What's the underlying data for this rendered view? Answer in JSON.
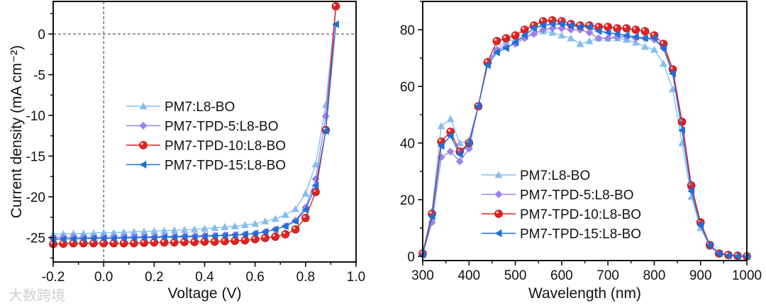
{
  "watermark": "大数跨境",
  "chart_data": [
    {
      "type": "line",
      "xlabel": "Voltage (V)",
      "ylabel": "Current density (mA cm⁻²)",
      "xlim": [
        -0.2,
        1.0
      ],
      "ylim": [
        -28,
        4
      ],
      "xticks": [
        -0.2,
        0.0,
        0.2,
        0.4,
        0.6,
        0.8,
        1.0
      ],
      "xtick_labels": [
        "-0.2",
        "0.0",
        "0.2",
        "0.4",
        "0.6",
        "0.8",
        "1.0"
      ],
      "yticks": [
        -25,
        -20,
        -15,
        -10,
        -5,
        0
      ],
      "ytick_labels": [
        "-25",
        "-20",
        "-15",
        "-10",
        "-5",
        "0"
      ],
      "reference_lines": [
        "x=0 dashed",
        "y=0 dashed"
      ],
      "legend_position": "center-left",
      "x": [
        -0.2,
        -0.16,
        -0.12,
        -0.08,
        -0.04,
        0.0,
        0.04,
        0.08,
        0.12,
        0.16,
        0.2,
        0.24,
        0.28,
        0.32,
        0.36,
        0.4,
        0.44,
        0.48,
        0.52,
        0.56,
        0.6,
        0.64,
        0.68,
        0.72,
        0.76,
        0.8,
        0.84,
        0.88,
        0.92
      ],
      "series": [
        {
          "name": "PM7:L8-BO",
          "color": "#86bdee",
          "marker": "triangle-up",
          "values": [
            -24.6,
            -24.55,
            -24.5,
            -24.5,
            -24.45,
            -24.4,
            -24.4,
            -24.35,
            -24.3,
            -24.25,
            -24.2,
            -24.15,
            -24.1,
            -24.05,
            -24.0,
            -23.9,
            -23.8,
            -23.7,
            -23.6,
            -23.45,
            -23.3,
            -23.0,
            -22.7,
            -22.2,
            -21.5,
            -19.6,
            -16.0,
            -8.7,
            3.5
          ]
        },
        {
          "name": "PM7-TPD-5:L8-BO",
          "color": "#9d82ea",
          "marker": "diamond",
          "values": [
            -25.0,
            -25.0,
            -25.0,
            -25.0,
            -25.0,
            -24.95,
            -24.95,
            -24.95,
            -24.9,
            -24.9,
            -24.9,
            -24.85,
            -24.85,
            -24.8,
            -24.8,
            -24.75,
            -24.75,
            -24.7,
            -24.65,
            -24.6,
            -24.5,
            -24.3,
            -24.0,
            -23.6,
            -22.9,
            -21.3,
            -17.8,
            -10.1,
            3.5
          ]
        },
        {
          "name": "PM7-TPD-10:L8-BO",
          "color": "#e3211f",
          "marker": "circle",
          "values": [
            -25.8,
            -25.75,
            -25.7,
            -25.7,
            -25.7,
            -25.7,
            -25.7,
            -25.7,
            -25.7,
            -25.65,
            -25.6,
            -25.6,
            -25.6,
            -25.55,
            -25.55,
            -25.5,
            -25.5,
            -25.45,
            -25.4,
            -25.35,
            -25.2,
            -25.05,
            -24.9,
            -24.6,
            -24.0,
            -22.6,
            -19.4,
            -11.8,
            3.4
          ]
        },
        {
          "name": "PM7-TPD-15:L8-BO",
          "color": "#1f6fd8",
          "marker": "triangle-left",
          "values": [
            -25.2,
            -25.2,
            -25.15,
            -25.15,
            -25.1,
            -25.1,
            -25.1,
            -25.05,
            -25.05,
            -25.0,
            -25.0,
            -24.95,
            -24.95,
            -24.9,
            -24.9,
            -24.85,
            -24.8,
            -24.75,
            -24.7,
            -24.6,
            -24.5,
            -24.3,
            -24.0,
            -23.6,
            -23.0,
            -21.6,
            -18.6,
            -11.9,
            1.2
          ]
        }
      ]
    },
    {
      "type": "line",
      "xlabel": "Wavelength (nm)",
      "ylabel": "",
      "xlim": [
        300,
        1000
      ],
      "ylim": [
        -1.5,
        90
      ],
      "xticks": [
        300,
        400,
        500,
        600,
        700,
        800,
        900,
        1000
      ],
      "xtick_labels": [
        "300",
        "400",
        "500",
        "600",
        "700",
        "800",
        "900",
        "1000"
      ],
      "yticks": [
        0,
        20,
        40,
        60,
        80
      ],
      "ytick_labels": [
        "0",
        "20",
        "40",
        "60",
        "80"
      ],
      "legend_position": "lower-left",
      "x": [
        300,
        320,
        340,
        360,
        380,
        400,
        420,
        440,
        460,
        480,
        500,
        520,
        540,
        560,
        580,
        600,
        620,
        640,
        660,
        680,
        700,
        720,
        740,
        760,
        780,
        800,
        820,
        840,
        860,
        880,
        900,
        920,
        940,
        960,
        980,
        1000
      ],
      "series": [
        {
          "name": "PM7:L8-BO",
          "color": "#86bdee",
          "marker": "triangle-up",
          "values": [
            1,
            16,
            46,
            48.5,
            40,
            41,
            53,
            69,
            73,
            76,
            76.5,
            77.5,
            79,
            79.5,
            79,
            78,
            77,
            75,
            76,
            77,
            77,
            77,
            76.5,
            75.5,
            74,
            73,
            68,
            59,
            40,
            21,
            10,
            3.5,
            1,
            0.3,
            0.1,
            0
          ]
        },
        {
          "name": "PM7-TPD-5:L8-BO",
          "color": "#9d82ea",
          "marker": "diamond",
          "values": [
            1,
            12,
            35,
            37,
            33.5,
            38,
            53,
            68,
            73,
            74,
            75,
            77,
            78.5,
            80,
            80.5,
            80.5,
            80,
            80,
            79,
            77,
            77,
            77.5,
            77.5,
            77,
            77,
            76.5,
            73.5,
            66,
            47,
            24,
            11,
            3.5,
            1,
            0.2,
            0,
            0
          ]
        },
        {
          "name": "PM7-TPD-10:L8-BO",
          "color": "#e3211f",
          "marker": "circle",
          "values": [
            1,
            15,
            40.5,
            44,
            37,
            40,
            53,
            68.5,
            76,
            77,
            78,
            80,
            81.5,
            83,
            83.3,
            83,
            82,
            81.5,
            81.5,
            81,
            81,
            80.5,
            80.5,
            80,
            79.5,
            78,
            75,
            66,
            47.5,
            25,
            12,
            4,
            1,
            0.5,
            0.2,
            0
          ]
        },
        {
          "name": "PM7-TPD-15:L8-BO",
          "color": "#1f6fd8",
          "marker": "triangle-left",
          "values": [
            0.5,
            14,
            39,
            42.5,
            36,
            40,
            53,
            67.5,
            72,
            73.5,
            75.5,
            78,
            80.5,
            81.5,
            82,
            82,
            81.5,
            81,
            81,
            79.5,
            79,
            78.5,
            78,
            77.5,
            77,
            77,
            73.5,
            64.5,
            44.5,
            23,
            11,
            4,
            1,
            0.3,
            0.1,
            0
          ]
        }
      ]
    }
  ]
}
